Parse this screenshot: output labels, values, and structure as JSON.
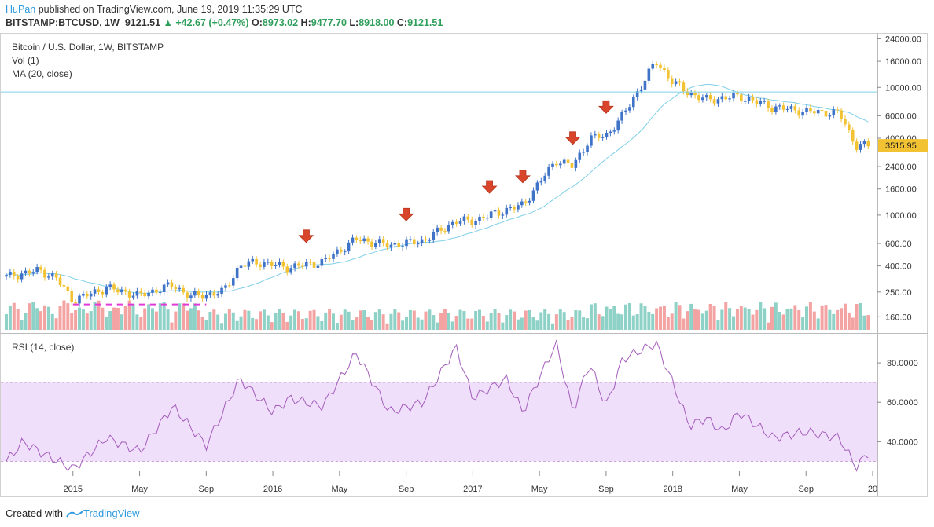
{
  "header": {
    "author": "HuPan",
    "published_text": "published on TradingView.com, June 19, 2019 11:35:29 UTC",
    "symbol": "BITSTAMP:BTCUSD, 1W",
    "last": "9121.51",
    "change": "▲ +42.67 (+0.47%)",
    "o_label": "O:",
    "o_value": "8973.02",
    "h_label": "H:",
    "h_value": "9477.70",
    "l_label": "L:",
    "l_value": "8918.00",
    "c_label": "C:",
    "c_value": "9121.51"
  },
  "legend": {
    "title": "Bitcoin / U.S. Dollar, 1W, BITSTAMP",
    "vol": "Vol (1)",
    "ma": "MA (20, close)",
    "rsi": "RSI (14, close)"
  },
  "colors": {
    "up": "#3f73c8",
    "down": "#f2c232",
    "ma": "#7fd0e8",
    "rsi": "#a35dbb",
    "rsi_band": "#f0dffa",
    "vol_up": "#8ed1c6",
    "vol_down": "#f4a3a3",
    "arrow": "#d9452b",
    "support": "#e23ad9",
    "price_tag": "#f2c232"
  },
  "footer": {
    "created_with": "Created with",
    "brand": "TradingView"
  },
  "chart_data": [
    {
      "type": "candlestick",
      "title": "Bitcoin / U.S. Dollar, 1W, BITSTAMP",
      "y_scale": "log",
      "y_ticks": [
        "24000.00",
        "16000.00",
        "10000.00",
        "6000.00",
        "4000.00",
        "2400.00",
        "1600.00",
        "1000.00",
        "600.00",
        "400.00",
        "250.00",
        "160.00"
      ],
      "ylim": [
        130,
        24500
      ],
      "x_ticks": [
        "2015",
        "May",
        "Sep",
        "2016",
        "May",
        "Sep",
        "2017",
        "May",
        "Sep",
        "2018",
        "May",
        "Sep",
        "20"
      ],
      "current_price_label": "3515.95",
      "horizontal_line": 9200,
      "support_level": 200,
      "sell_arrows": [
        "2016-03",
        "2016-09",
        "2017-02",
        "2017-04",
        "2017-07",
        "2017-09"
      ],
      "keypoints": [
        {
          "t": "2014-09",
          "p": 330
        },
        {
          "t": "2014-11",
          "p": 370
        },
        {
          "t": "2014-12",
          "p": 320
        },
        {
          "t": "2015-01",
          "p": 215
        },
        {
          "t": "2015-03",
          "p": 270
        },
        {
          "t": "2015-05",
          "p": 235
        },
        {
          "t": "2015-07",
          "p": 285
        },
        {
          "t": "2015-08",
          "p": 230
        },
        {
          "t": "2015-10",
          "p": 250
        },
        {
          "t": "2015-11",
          "p": 400
        },
        {
          "t": "2015-12",
          "p": 430
        },
        {
          "t": "2016-02",
          "p": 390
        },
        {
          "t": "2016-04",
          "p": 430
        },
        {
          "t": "2016-06",
          "p": 650
        },
        {
          "t": "2016-08",
          "p": 580
        },
        {
          "t": "2016-10",
          "p": 630
        },
        {
          "t": "2016-12",
          "p": 900
        },
        {
          "t": "2017-01",
          "p": 900
        },
        {
          "t": "2017-03",
          "p": 1100
        },
        {
          "t": "2017-04",
          "p": 1200
        },
        {
          "t": "2017-06",
          "p": 2700
        },
        {
          "t": "2017-07",
          "p": 2400
        },
        {
          "t": "2017-08",
          "p": 4000
        },
        {
          "t": "2017-09",
          "p": 4200
        },
        {
          "t": "2017-10",
          "p": 6000
        },
        {
          "t": "2017-12",
          "p": 16000
        },
        {
          "t": "2018-01",
          "p": 11000
        },
        {
          "t": "2018-02",
          "p": 9000
        },
        {
          "t": "2018-03",
          "p": 8000
        },
        {
          "t": "2018-05",
          "p": 8500
        },
        {
          "t": "2018-07",
          "p": 7000
        },
        {
          "t": "2018-09",
          "p": 6500
        },
        {
          "t": "2018-11",
          "p": 6300
        },
        {
          "t": "2018-12",
          "p": 3500
        },
        {
          "t": "2019-01",
          "p": 3500
        }
      ]
    },
    {
      "type": "line",
      "title": "RSI (14, close)",
      "y_ticks": [
        "80.0000",
        "60.0000",
        "40.0000"
      ],
      "ylim": [
        25,
        92
      ],
      "band": [
        30,
        70
      ],
      "keypoints": [
        {
          "t": "2014-09",
          "v": 30
        },
        {
          "t": "2014-10",
          "v": 40
        },
        {
          "t": "2014-11",
          "v": 35
        },
        {
          "t": "2015-01",
          "v": 26
        },
        {
          "t": "2015-03",
          "v": 42
        },
        {
          "t": "2015-05",
          "v": 35
        },
        {
          "t": "2015-07",
          "v": 58
        },
        {
          "t": "2015-09",
          "v": 38
        },
        {
          "t": "2015-11",
          "v": 72
        },
        {
          "t": "2016-01",
          "v": 55
        },
        {
          "t": "2016-02",
          "v": 62
        },
        {
          "t": "2016-04",
          "v": 58
        },
        {
          "t": "2016-06",
          "v": 85
        },
        {
          "t": "2016-08",
          "v": 55
        },
        {
          "t": "2016-10",
          "v": 60
        },
        {
          "t": "2016-12",
          "v": 88
        },
        {
          "t": "2017-01",
          "v": 62
        },
        {
          "t": "2017-03",
          "v": 72
        },
        {
          "t": "2017-04",
          "v": 55
        },
        {
          "t": "2017-06",
          "v": 90
        },
        {
          "t": "2017-07",
          "v": 55
        },
        {
          "t": "2017-08",
          "v": 80
        },
        {
          "t": "2017-09",
          "v": 58
        },
        {
          "t": "2017-10",
          "v": 82
        },
        {
          "t": "2017-12",
          "v": 90
        },
        {
          "t": "2018-01",
          "v": 70
        },
        {
          "t": "2018-02",
          "v": 48
        },
        {
          "t": "2018-03",
          "v": 52
        },
        {
          "t": "2018-04",
          "v": 45
        },
        {
          "t": "2018-05",
          "v": 55
        },
        {
          "t": "2018-07",
          "v": 42
        },
        {
          "t": "2018-09",
          "v": 45
        },
        {
          "t": "2018-11",
          "v": 42
        },
        {
          "t": "2018-12",
          "v": 27
        },
        {
          "t": "2019-01",
          "v": 37
        }
      ]
    }
  ]
}
